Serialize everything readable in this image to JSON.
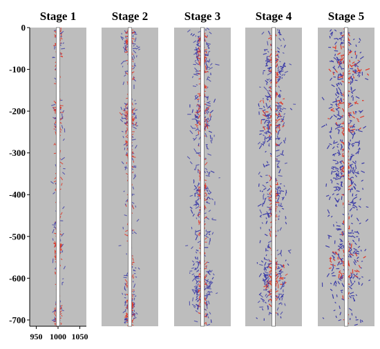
{
  "chart_data": {
    "type": "scatter",
    "description_type": "microseismic-fracture-map-small-multiples",
    "panels": [
      {
        "title": "Stage 1",
        "fracture_density": 0.18,
        "zones": [
          [
            -210,
            0.9
          ],
          [
            -20,
            0.6
          ],
          [
            -690,
            0.7
          ],
          [
            -520,
            0.3
          ]
        ]
      },
      {
        "title": "Stage 2",
        "fracture_density": 0.3,
        "zones": [
          [
            -210,
            0.9
          ],
          [
            -40,
            0.7
          ],
          [
            -680,
            0.7
          ],
          [
            -300,
            0.4
          ]
        ]
      },
      {
        "title": "Stage 3",
        "fracture_density": 0.55,
        "zones": [
          [
            -210,
            0.9
          ],
          [
            -620,
            0.8
          ],
          [
            -400,
            0.6
          ],
          [
            -60,
            0.6
          ]
        ]
      },
      {
        "title": "Stage 4",
        "fracture_density": 0.7,
        "zones": [
          [
            -210,
            0.9
          ],
          [
            -600,
            0.9
          ],
          [
            -420,
            0.7
          ],
          [
            -100,
            0.7
          ]
        ]
      },
      {
        "title": "Stage 5",
        "fracture_density": 1.0,
        "zones": [
          [
            -210,
            1.0
          ],
          [
            -560,
            1.0
          ],
          [
            -350,
            0.8
          ],
          [
            -80,
            0.9
          ]
        ]
      }
    ],
    "y_axis": {
      "ticks": [
        0,
        -100,
        -200,
        -300,
        -400,
        -500,
        -600,
        -700
      ],
      "range": [
        -715,
        0
      ]
    },
    "x_axis": {
      "ticks": [
        950,
        1000,
        1050
      ],
      "range": [
        935,
        1065
      ],
      "borehole_x": 1000
    },
    "colors": {
      "background": "#bdbdbd",
      "fracture_low": "#3b3ba8",
      "fracture_high": "#e03a2a",
      "borehole": "#ffffff"
    },
    "grid": false,
    "legend": "none"
  }
}
